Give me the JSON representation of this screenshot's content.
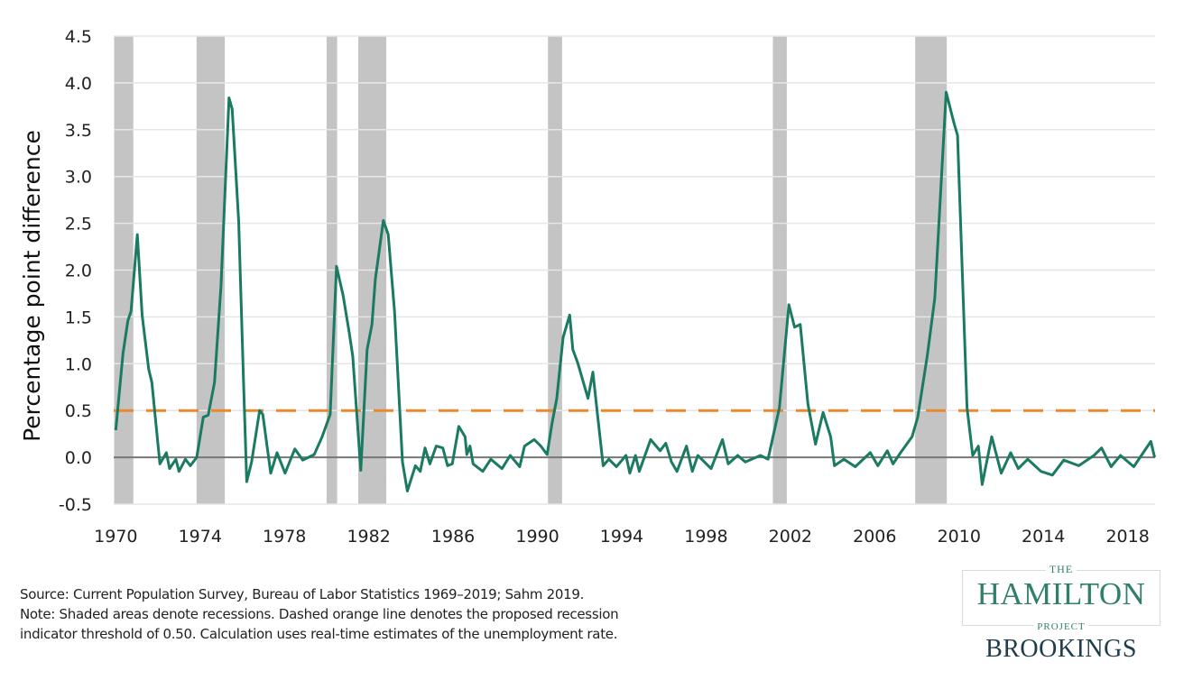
{
  "chart_data": {
    "type": "line",
    "title": "",
    "xlabel": "",
    "ylabel": "Percentage point difference",
    "xlim": [
      1969.9,
      2019.3
    ],
    "ylim": [
      -0.5,
      4.5
    ],
    "yticks": [
      "-0.5",
      "0.0",
      "0.5",
      "1.0",
      "1.5",
      "2.0",
      "2.5",
      "3.0",
      "3.5",
      "4.0",
      "4.5"
    ],
    "xticks": [
      "1970",
      "1974",
      "1978",
      "1982",
      "1986",
      "1990",
      "1994",
      "1998",
      "2002",
      "2006",
      "2010",
      "2014",
      "2018"
    ],
    "grid": true,
    "threshold": 0.5,
    "recessions": [
      [
        1969.92,
        1970.83
      ],
      [
        1973.83,
        1975.17
      ],
      [
        1980.0,
        1980.5
      ],
      [
        1981.5,
        1982.83
      ],
      [
        1990.5,
        1991.17
      ],
      [
        2001.17,
        2001.83
      ],
      [
        2007.92,
        2009.42
      ]
    ],
    "colors": {
      "series": "#1a7a62",
      "threshold": "#e8892e",
      "recession": "#c4c4c4",
      "zero": "#777777",
      "grid": "#e6e6e6"
    },
    "series": [
      {
        "x": [
          1970.0,
          1970.34,
          1970.57,
          1970.72,
          1971.02,
          1971.25,
          1971.56,
          1971.71,
          1972.09,
          1972.4,
          1972.55,
          1972.85,
          1973.0,
          1973.3,
          1973.54,
          1973.84,
          1974.15,
          1974.38,
          1974.68,
          1974.99,
          1975.37,
          1975.52,
          1975.83,
          1976.06,
          1976.21,
          1976.44,
          1976.82,
          1976.97,
          1977.35,
          1977.65,
          1978.03,
          1978.49,
          1978.87,
          1979.41,
          1979.79,
          1980.17,
          1980.47,
          1980.78,
          1981.08,
          1981.24,
          1981.62,
          1981.92,
          1982.15,
          1982.31,
          1982.69,
          1982.92,
          1983.22,
          1983.6,
          1983.83,
          1984.21,
          1984.44,
          1984.67,
          1984.9,
          1985.2,
          1985.51,
          1985.74,
          1985.96,
          1986.27,
          1986.57,
          1986.65,
          1986.8,
          1986.95,
          1987.41,
          1987.79,
          1988.32,
          1988.71,
          1989.16,
          1989.39,
          1989.85,
          1990.16,
          1990.46,
          1990.69,
          1990.92,
          1991.22,
          1991.53,
          1991.68,
          1991.91,
          1992.4,
          1992.63,
          1992.85,
          1993.12,
          1993.39,
          1993.75,
          1994.2,
          1994.38,
          1994.65,
          1994.83,
          1995.37,
          1995.82,
          1996.09,
          1996.36,
          1996.62,
          1997.07,
          1997.35,
          1997.61,
          1998.24,
          1998.78,
          1999.05,
          1999.5,
          1999.86,
          2000.58,
          2000.94,
          2001.48,
          2001.93,
          2002.2,
          2002.47,
          2002.83,
          2003.19,
          2003.55,
          2003.91,
          2004.09,
          2004.54,
          2005.08,
          2005.79,
          2006.15,
          2006.6,
          2006.87,
          2007.23,
          2007.77,
          2008.04,
          2008.49,
          2008.85,
          2009.39,
          2009.75,
          2009.93,
          2010.38,
          2010.65,
          2010.92,
          2011.1,
          2011.55,
          2012.0,
          2012.45,
          2012.81,
          2013.26,
          2013.89,
          2014.43,
          2014.97,
          2015.68,
          2016.4,
          2016.76,
          2017.21,
          2017.66,
          2018.29,
          2018.65,
          2019.1,
          2019.28
        ],
        "values": [
          0.29,
          1.11,
          1.46,
          1.56,
          2.38,
          1.52,
          0.94,
          0.8,
          -0.07,
          0.05,
          -0.12,
          -0.02,
          -0.15,
          -0.02,
          -0.09,
          0.0,
          0.43,
          0.45,
          0.8,
          1.83,
          3.84,
          3.72,
          2.52,
          0.8,
          -0.26,
          -0.05,
          0.5,
          0.46,
          -0.17,
          0.05,
          -0.17,
          0.09,
          -0.03,
          0.03,
          0.22,
          0.46,
          2.04,
          1.73,
          1.32,
          1.08,
          -0.14,
          1.15,
          1.42,
          1.9,
          2.53,
          2.38,
          1.56,
          -0.05,
          -0.36,
          -0.09,
          -0.15,
          0.1,
          -0.07,
          0.12,
          0.1,
          -0.09,
          -0.07,
          0.33,
          0.22,
          0.03,
          0.12,
          -0.07,
          -0.15,
          -0.02,
          -0.12,
          0.02,
          -0.1,
          0.12,
          0.19,
          0.12,
          0.03,
          0.36,
          0.63,
          1.28,
          1.52,
          1.15,
          1.01,
          0.63,
          0.91,
          0.46,
          -0.09,
          -0.02,
          -0.1,
          0.02,
          -0.17,
          0.02,
          -0.15,
          0.19,
          0.07,
          0.15,
          -0.05,
          -0.15,
          0.12,
          -0.15,
          0.02,
          -0.12,
          0.19,
          -0.07,
          0.02,
          -0.05,
          0.02,
          -0.02,
          0.53,
          1.63,
          1.39,
          1.42,
          0.57,
          0.14,
          0.48,
          0.22,
          -0.09,
          -0.02,
          -0.1,
          0.05,
          -0.09,
          0.07,
          -0.07,
          0.05,
          0.22,
          0.43,
          1.08,
          1.7,
          3.9,
          3.58,
          3.44,
          0.53,
          0.02,
          0.12,
          -0.29,
          0.22,
          -0.17,
          0.05,
          -0.12,
          -0.02,
          -0.15,
          -0.19,
          -0.03,
          -0.09,
          0.02,
          0.1,
          -0.1,
          0.02,
          -0.1,
          0.02,
          0.17,
          0.0
        ]
      }
    ]
  },
  "notes": {
    "source": "Source: Current Population Survey, Bureau of Labor Statistics 1969–2019; Sahm 2019.",
    "note_line1": "Note: Shaded areas denote recessions. Dashed orange line denotes the proposed recession",
    "note_line2": "indicator threshold of 0.50. Calculation uses real-time estimates of the unemployment rate."
  },
  "logo": {
    "the": "THE",
    "hamilton": "HAMILTON",
    "project": "PROJECT",
    "brookings": "BROOKINGS"
  }
}
